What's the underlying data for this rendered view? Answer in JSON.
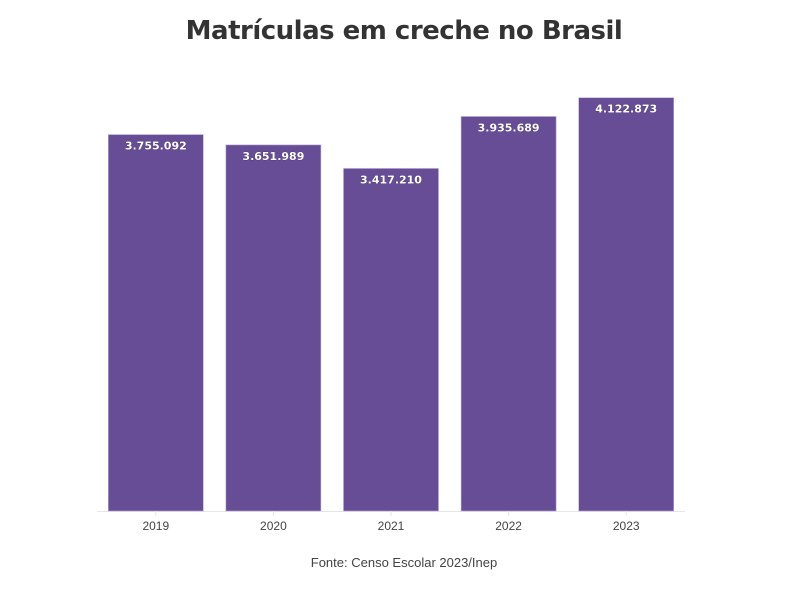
{
  "chart_data": {
    "type": "bar",
    "title": "Matrículas em creche no Brasil",
    "categories": [
      "2019",
      "2020",
      "2021",
      "2022",
      "2023"
    ],
    "values": [
      3755092,
      3651989,
      3417210,
      3935689,
      4122873
    ],
    "data_labels": [
      "3.755.092",
      "3.651.989",
      "3.417.210",
      "3.935.689",
      "4.122.873"
    ],
    "xlabel": "",
    "ylabel": "",
    "ylim": [
      0,
      4200000
    ],
    "grid": false,
    "bar_color": "#674c96",
    "source": "Fonte: Censo Escolar 2023/Inep"
  }
}
